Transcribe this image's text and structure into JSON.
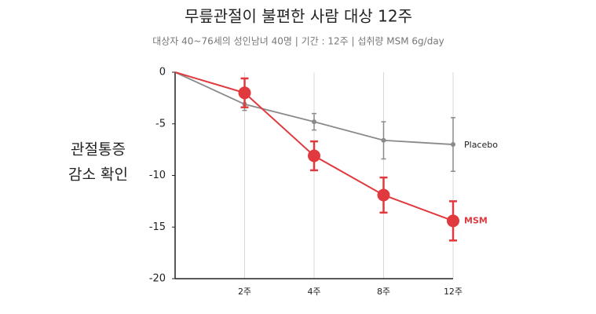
{
  "chart_data": {
    "type": "line",
    "title": "무릎관절이 불편한 사람 대상 12주",
    "subtitle": "대상자 40~76세의 성인남녀 40명 | 기간 : 12주 | 섭취량 MSM 6g/day",
    "y_label": [
      "관절통증",
      "감소 확인"
    ],
    "categories": [
      null,
      "2주",
      "4주",
      "8주",
      "12주"
    ],
    "ylim": [
      0,
      -20
    ],
    "yticks": [
      0,
      -5,
      -10,
      -15,
      -20
    ],
    "grid": true,
    "series": [
      {
        "name": "Placebo",
        "color": "#8a8a8a",
        "values": [
          0,
          -3.1,
          -4.8,
          -6.6,
          -7.0
        ],
        "errors": [
          null,
          0.6,
          0.8,
          1.8,
          2.6
        ]
      },
      {
        "name": "MSM",
        "color": "#e03a3e",
        "values": [
          0,
          -2.0,
          -8.1,
          -11.9,
          -14.4
        ],
        "errors": [
          null,
          1.4,
          1.4,
          1.7,
          1.9
        ]
      }
    ]
  }
}
